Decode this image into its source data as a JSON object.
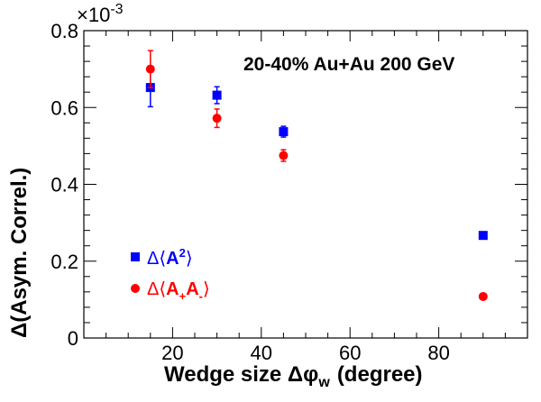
{
  "chart_data": {
    "type": "scatter",
    "title": "",
    "annotation": "20-40% Au+Au 200 GeV",
    "xlabel": "Wedge size Δφ",
    "xlabel_sub": "w",
    "xlabel_suffix": "(degree)",
    "ylabel": "Δ(Asym. Correl.)",
    "yscale_label": "×10",
    "yscale_exp": "-3",
    "xlim": [
      0,
      100
    ],
    "ylim": [
      0,
      0.8
    ],
    "xticks": [
      20,
      40,
      60,
      80
    ],
    "xtick_labels": [
      "20",
      "40",
      "60",
      "80"
    ],
    "yticks": [
      0,
      0.2,
      0.4,
      0.6,
      0.8
    ],
    "ytick_labels": [
      "0",
      "0.2",
      "0.4",
      "0.6",
      "0.8"
    ],
    "legend_position": "bottom-left",
    "grid": false,
    "series": [
      {
        "key": "a2",
        "legend_prefix": "Δ⟨",
        "legend_main": "A",
        "legend_sup": "2",
        "legend_suffix": "⟩",
        "marker": "square",
        "color": "#0000ff",
        "x": [
          15,
          30,
          45,
          90
        ],
        "y": [
          0.652,
          0.632,
          0.537,
          0.267
        ],
        "yerr": [
          0.05,
          0.022,
          0.014,
          0.006
        ]
      },
      {
        "key": "apam",
        "legend_prefix": "Δ⟨",
        "legend_main1": "A",
        "legend_sub1": "+",
        "legend_main2": "A",
        "legend_sub2": "-",
        "legend_suffix": "⟩",
        "marker": "circle",
        "color": "#ff0000",
        "x": [
          15,
          30,
          45,
          90
        ],
        "y": [
          0.7,
          0.572,
          0.475,
          0.108
        ],
        "yerr": [
          0.048,
          0.024,
          0.015,
          0.004
        ]
      }
    ]
  }
}
